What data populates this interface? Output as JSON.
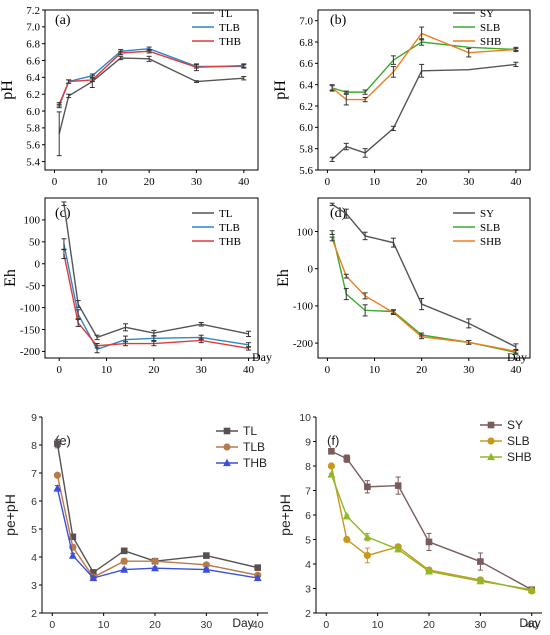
{
  "chart_data": [
    {
      "panel": "(a)",
      "type": "line",
      "ylabel": "pH",
      "xlabel": "",
      "ylim": [
        5.3,
        7.2
      ],
      "yticks": [
        5.4,
        5.6,
        5.8,
        6.0,
        6.2,
        6.4,
        6.6,
        6.8,
        7.0,
        7.2
      ],
      "yticks_labels": [
        "5.4",
        "5.6",
        "5.8",
        "6.0",
        "6.2",
        "6.4",
        "6.6",
        "6.8",
        "7.0",
        "7.2"
      ],
      "xlim": [
        -2,
        43
      ],
      "xticks": [
        0,
        10,
        20,
        30,
        40
      ],
      "xticks_labels": [
        "0",
        "10",
        "20",
        "30",
        "40"
      ],
      "legend_position": "top-right",
      "series": [
        {
          "name": "TL",
          "color": "#555555",
          "marker": "none",
          "x": [
            1,
            3,
            8,
            14,
            20,
            30,
            40
          ],
          "y": [
            5.73,
            6.18,
            6.35,
            6.63,
            6.62,
            6.35,
            6.39
          ],
          "err": [
            0.26,
            0.02,
            0.07,
            0.02,
            0.03,
            0.01,
            0.02
          ]
        },
        {
          "name": "TLB",
          "color": "#2e86c8",
          "marker": "none",
          "x": [
            1,
            3,
            8,
            14,
            20,
            30,
            40
          ],
          "y": [
            6.06,
            6.35,
            6.42,
            6.71,
            6.74,
            6.53,
            6.53
          ],
          "err": [
            0.02,
            0.02,
            0.02,
            0.02,
            0.02,
            0.02,
            0.02
          ]
        },
        {
          "name": "THB",
          "color": "#e03a3a",
          "marker": "none",
          "x": [
            1,
            3,
            8,
            14,
            20,
            30,
            40
          ],
          "y": [
            6.08,
            6.35,
            6.37,
            6.69,
            6.71,
            6.52,
            6.54
          ],
          "err": [
            0.02,
            0.02,
            0.02,
            0.02,
            0.02,
            0.04,
            0.02
          ]
        }
      ]
    },
    {
      "panel": "(b)",
      "type": "line",
      "ylabel": "pH",
      "xlabel": "",
      "ylim": [
        5.6,
        7.1
      ],
      "yticks": [
        5.6,
        5.8,
        6.0,
        6.2,
        6.4,
        6.6,
        6.8,
        7.0
      ],
      "yticks_labels": [
        "5.6",
        "5.8",
        "6.0",
        "6.2",
        "6.4",
        "6.6",
        "6.8",
        "7.0"
      ],
      "xlim": [
        -2,
        43
      ],
      "xticks": [
        0,
        10,
        20,
        30,
        40
      ],
      "xticks_labels": [
        "0",
        "10",
        "20",
        "30",
        "40"
      ],
      "legend_position": "top-right",
      "series": [
        {
          "name": "SY",
          "color": "#555555",
          "marker": "none",
          "x": [
            1,
            4,
            8,
            14,
            20,
            30,
            40
          ],
          "y": [
            5.7,
            5.82,
            5.76,
            5.99,
            6.53,
            6.54,
            6.59
          ],
          "err": [
            0.02,
            0.03,
            0.04,
            0.02,
            0.06,
            0.0,
            0.02
          ]
        },
        {
          "name": "SLB",
          "color": "#3caa2c",
          "marker": "none",
          "x": [
            1,
            4,
            8,
            14,
            20,
            30,
            40
          ],
          "y": [
            6.37,
            6.33,
            6.33,
            6.63,
            6.8,
            6.75,
            6.73
          ],
          "err": [
            0.02,
            0.01,
            0.02,
            0.04,
            0.03,
            0.0,
            0.01
          ]
        },
        {
          "name": "SHB",
          "color": "#f07d1f",
          "marker": "none",
          "x": [
            1,
            4,
            8,
            14,
            20,
            30,
            40
          ],
          "y": [
            6.37,
            6.26,
            6.26,
            6.52,
            6.88,
            6.7,
            6.73
          ],
          "err": [
            0.03,
            0.05,
            0.02,
            0.05,
            0.06,
            0.04,
            0.02
          ]
        }
      ]
    },
    {
      "panel": "(c)",
      "type": "line",
      "ylabel": "Eh",
      "xlabel": "Day",
      "ylim": [
        -215,
        150
      ],
      "yticks": [
        -200,
        -150,
        -100,
        -50,
        0,
        50,
        100
      ],
      "yticks_labels": [
        "-200",
        "-150",
        "-100",
        "-50",
        "0",
        "50",
        "100"
      ],
      "xlim": [
        -3,
        42
      ],
      "xticks": [
        0,
        10,
        20,
        30,
        40
      ],
      "xticks_labels": [
        "0",
        "10",
        "20",
        "30",
        "40"
      ],
      "legend_position": "top-right",
      "series": [
        {
          "name": "TL",
          "color": "#555555",
          "marker": "none",
          "x": [
            1,
            4,
            8,
            14,
            20,
            30,
            40
          ],
          "y": [
            137,
            -92,
            -168,
            -145,
            -158,
            -138,
            -160
          ],
          "err": [
            4,
            8,
            5,
            8,
            6,
            4,
            6
          ]
        },
        {
          "name": "TLB",
          "color": "#2e86c8",
          "marker": "none",
          "x": [
            1,
            4,
            8,
            14,
            20,
            30,
            40
          ],
          "y": [
            45,
            -115,
            -195,
            -173,
            -170,
            -168,
            -185
          ],
          "err": [
            12,
            10,
            8,
            8,
            5,
            5,
            5
          ]
        },
        {
          "name": "THB",
          "color": "#e03a3a",
          "marker": "none",
          "x": [
            1,
            4,
            8,
            14,
            20,
            30,
            40
          ],
          "y": [
            22,
            -135,
            -187,
            -182,
            -182,
            -175,
            -193
          ],
          "err": [
            10,
            8,
            5,
            5,
            5,
            5,
            4
          ]
        }
      ]
    },
    {
      "panel": "(d)",
      "type": "line",
      "ylabel": "Eh",
      "xlabel": "Day",
      "ylim": [
        -240,
        190
      ],
      "yticks": [
        -200,
        -100,
        0,
        100
      ],
      "yticks_labels": [
        "-200",
        "-100",
        "0",
        "100"
      ],
      "xlim": [
        -2,
        43
      ],
      "xticks": [
        0,
        10,
        20,
        30,
        40
      ],
      "xticks_labels": [
        "0",
        "10",
        "20",
        "30",
        "40"
      ],
      "legend_position": "top-right",
      "series": [
        {
          "name": "SY",
          "color": "#555555",
          "marker": "none",
          "x": [
            1,
            4,
            8,
            14,
            20,
            30,
            40
          ],
          "y": [
            173,
            148,
            88,
            70,
            -95,
            -147,
            -210
          ],
          "err": [
            3,
            12,
            10,
            12,
            15,
            12,
            8
          ]
        },
        {
          "name": "SLB",
          "color": "#3caa2c",
          "marker": "none",
          "x": [
            1,
            4,
            8,
            14,
            20,
            30,
            40
          ],
          "y": [
            97,
            -68,
            -112,
            -115,
            -178,
            -198,
            -225
          ],
          "err": [
            5,
            15,
            15,
            5,
            5,
            5,
            5
          ]
        },
        {
          "name": "SHB",
          "color": "#f07d1f",
          "marker": "none",
          "x": [
            1,
            4,
            8,
            14,
            20,
            30,
            40
          ],
          "y": [
            80,
            -20,
            -73,
            -118,
            -183,
            -198,
            -222
          ],
          "err": [
            5,
            5,
            8,
            5,
            5,
            5,
            5
          ]
        }
      ]
    },
    {
      "panel": "(e)",
      "type": "line",
      "ylabel": "pe+pH",
      "xlabel": "Day",
      "ylim": [
        2,
        9
      ],
      "yticks": [
        2,
        3,
        4,
        5,
        6,
        7,
        8,
        9
      ],
      "yticks_labels": [
        "2",
        "3",
        "4",
        "5",
        "6",
        "7",
        "8",
        "9"
      ],
      "xlim": [
        -2,
        42
      ],
      "xticks": [
        0,
        10,
        20,
        30,
        40
      ],
      "xticks_labels": [
        "0",
        "10",
        "20",
        "30",
        "40"
      ],
      "legend_position": "top-right",
      "series": [
        {
          "name": "TL",
          "color": "#595050",
          "marker": "square",
          "x": [
            1,
            4,
            8,
            14,
            20,
            30,
            40
          ],
          "y": [
            8.05,
            4.72,
            3.45,
            4.22,
            3.85,
            4.05,
            3.62
          ],
          "err": [
            0.15,
            0.08,
            0.05,
            0.05,
            0.05,
            0.04,
            0.06
          ]
        },
        {
          "name": "TLB",
          "color": "#b87a48",
          "marker": "circle",
          "x": [
            1,
            4,
            8,
            14,
            20,
            30,
            40
          ],
          "y": [
            6.92,
            4.35,
            3.28,
            3.85,
            3.85,
            3.72,
            3.35
          ],
          "err": [
            0.06,
            0.08,
            0.05,
            0.1,
            0.05,
            0.04,
            0.05
          ]
        },
        {
          "name": "THB",
          "color": "#3b4fd8",
          "marker": "triangle",
          "x": [
            1,
            4,
            8,
            14,
            20,
            30,
            40
          ],
          "y": [
            6.45,
            4.05,
            3.25,
            3.55,
            3.6,
            3.55,
            3.25
          ],
          "err": [
            0.1,
            0.08,
            0.05,
            0.05,
            0.05,
            0.04,
            0.05
          ]
        }
      ]
    },
    {
      "panel": "(f)",
      "type": "line",
      "ylabel": "pe+pH",
      "xlabel": "Day",
      "ylim": [
        2,
        10
      ],
      "yticks": [
        2,
        3,
        4,
        5,
        6,
        7,
        8,
        9,
        10
      ],
      "yticks_labels": [
        "2",
        "3",
        "4",
        "5",
        "6",
        "7",
        "8",
        "9",
        "10"
      ],
      "xlim": [
        -2,
        42
      ],
      "xticks": [
        0,
        10,
        20,
        30,
        40
      ],
      "xticks_labels": [
        "0",
        "10",
        "20",
        "30",
        "40"
      ],
      "legend_position": "top-right",
      "series": [
        {
          "name": "SY",
          "color": "#7a5a5a",
          "marker": "square",
          "x": [
            1,
            4,
            8,
            14,
            20,
            30,
            40
          ],
          "y": [
            8.6,
            8.3,
            7.15,
            7.2,
            4.9,
            4.1,
            2.95
          ],
          "err": [
            0.05,
            0.15,
            0.25,
            0.35,
            0.35,
            0.35,
            0.1
          ]
        },
        {
          "name": "SLB",
          "color": "#c8981e",
          "marker": "circle",
          "x": [
            1,
            4,
            8,
            14,
            20,
            30,
            40
          ],
          "y": [
            8.0,
            5.0,
            4.35,
            4.7,
            3.75,
            3.35,
            2.9
          ],
          "err": [
            0.05,
            0.1,
            0.3,
            0.1,
            0.1,
            0.1,
            0.05
          ]
        },
        {
          "name": "SHB",
          "color": "#8fb82a",
          "marker": "triangle",
          "x": [
            1,
            4,
            8,
            14,
            20,
            30,
            40
          ],
          "y": [
            7.65,
            5.95,
            5.1,
            4.6,
            3.7,
            3.3,
            2.95
          ],
          "err": [
            0.05,
            0.05,
            0.15,
            0.1,
            0.1,
            0.1,
            0.05
          ]
        }
      ]
    }
  ]
}
